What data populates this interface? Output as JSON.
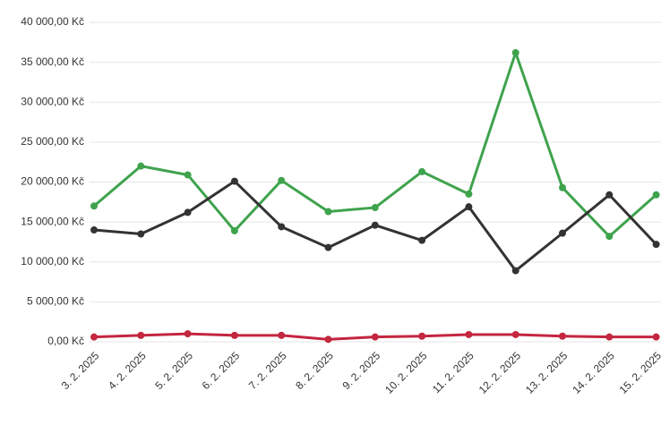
{
  "chart_data": {
    "type": "line",
    "categories": [
      "3. 2. 2025",
      "4. 2. 2025",
      "5. 2. 2025",
      "6. 2. 2025",
      "7. 2. 2025",
      "8. 2. 2025",
      "9. 2. 2025",
      "10. 2. 2025",
      "11. 2. 2025",
      "12. 2. 2025",
      "13. 2. 2025",
      "14. 2. 2025",
      "15. 2. 2025"
    ],
    "series": [
      {
        "color": "#3fa34d",
        "values": [
          17000,
          22000,
          20900,
          13900,
          20200,
          16300,
          16800,
          21300,
          18500,
          36200,
          19300,
          13200,
          18400
        ]
      },
      {
        "color": "#333333",
        "values": [
          14000,
          13500,
          16200,
          20100,
          14400,
          11800,
          14600,
          12700,
          16900,
          8900,
          13600,
          18400,
          12200
        ]
      },
      {
        "color": "#c4263f",
        "values": [
          600,
          800,
          1000,
          800,
          800,
          300,
          600,
          700,
          900,
          900,
          700,
          600,
          600
        ]
      }
    ],
    "ylim": [
      0,
      40000
    ],
    "yticks": [
      {
        "value": 0,
        "label": "0,00 Kč"
      },
      {
        "value": 5000,
        "label": "5 000,00 Kč"
      },
      {
        "value": 10000,
        "label": "10 000,00 Kč"
      },
      {
        "value": 15000,
        "label": "15 000,00 Kč"
      },
      {
        "value": 20000,
        "label": "20 000,00 Kč"
      },
      {
        "value": 25000,
        "label": "25 000,00 Kč"
      },
      {
        "value": 30000,
        "label": "30 000,00 Kč"
      },
      {
        "value": 35000,
        "label": "35 000,00 Kč"
      },
      {
        "value": 40000,
        "label": "40 000,00 Kč"
      }
    ],
    "grid": true
  }
}
